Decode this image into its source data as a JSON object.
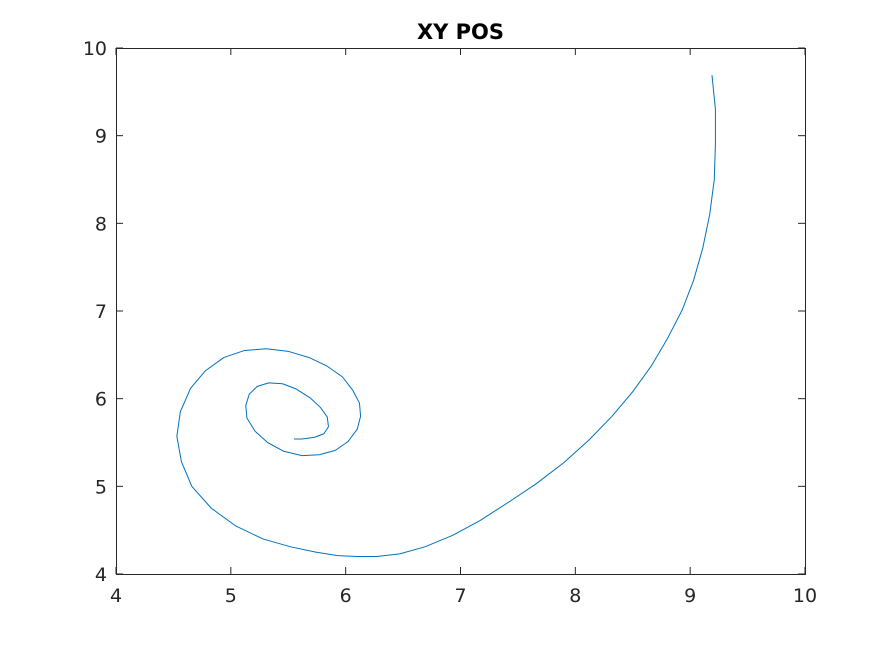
{
  "chart_data": {
    "type": "line",
    "title": "XY POS",
    "xlabel": "",
    "ylabel": "",
    "xlim": [
      4,
      10
    ],
    "ylim": [
      4,
      10
    ],
    "xticks": [
      "4",
      "5",
      "6",
      "7",
      "8",
      "9",
      "10"
    ],
    "yticks": [
      "4",
      "5",
      "6",
      "7",
      "8",
      "9",
      "10"
    ],
    "grid": false,
    "legend": "none",
    "line_color": "#0072BD",
    "series": [
      {
        "x": [
          9.19,
          9.22,
          9.22,
          9.21,
          9.17,
          9.11,
          9.03,
          8.93,
          8.8,
          8.66,
          8.5,
          8.32,
          8.12,
          7.9,
          7.66,
          7.42,
          7.17,
          6.93,
          6.69,
          6.47,
          6.27,
          6.1,
          5.93,
          5.74,
          5.52,
          5.28,
          5.04,
          4.83,
          4.66,
          4.57,
          4.53,
          4.56,
          4.65,
          4.78,
          4.94,
          5.12,
          5.31,
          5.5,
          5.68,
          5.84,
          5.97,
          6.06,
          6.12,
          6.13,
          6.1,
          6.02,
          5.91,
          5.77,
          5.62,
          5.46,
          5.32,
          5.21,
          5.14,
          5.13,
          5.16,
          5.23,
          5.33,
          5.45,
          5.57,
          5.69,
          5.78,
          5.84,
          5.85,
          5.81,
          5.73,
          5.62,
          5.55
        ],
        "y": [
          9.69,
          9.3,
          8.9,
          8.5,
          8.1,
          7.72,
          7.35,
          7.01,
          6.68,
          6.37,
          6.08,
          5.8,
          5.53,
          5.27,
          5.03,
          4.82,
          4.61,
          4.44,
          4.31,
          4.23,
          4.2,
          4.2,
          4.21,
          4.25,
          4.31,
          4.4,
          4.55,
          4.75,
          5.0,
          5.28,
          5.57,
          5.85,
          6.12,
          6.32,
          6.47,
          6.55,
          6.57,
          6.54,
          6.47,
          6.37,
          6.25,
          6.1,
          5.95,
          5.8,
          5.65,
          5.51,
          5.41,
          5.36,
          5.35,
          5.4,
          5.5,
          5.63,
          5.78,
          5.92,
          6.05,
          6.14,
          6.18,
          6.17,
          6.11,
          6.01,
          5.9,
          5.79,
          5.68,
          5.6,
          5.56,
          5.54,
          5.54
        ]
      }
    ]
  }
}
